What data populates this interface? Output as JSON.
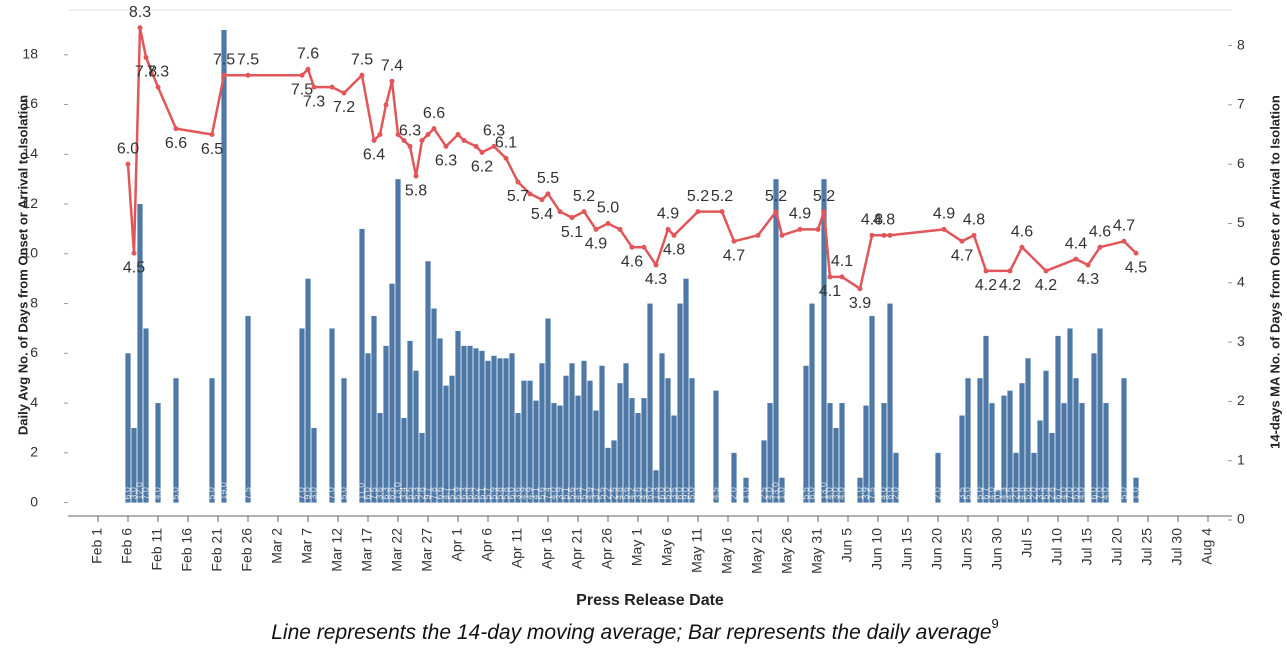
{
  "chart_data": {
    "type": "combo",
    "x_title": "Press Release Date",
    "y_title": "Daily Avg No. of Days from Onset or Arrival to Isolation",
    "y2_title": "14-days MA No. of Days from Onset or Arrival to Isolation",
    "caption": "Line represents the 14-day moving average; Bar represents the daily average",
    "caption_note": "9",
    "xlim": [
      "Jan 27",
      "Aug 8"
    ],
    "xticks": [
      "Feb 1",
      "Feb 6",
      "Feb 11",
      "Feb 16",
      "Feb 21",
      "Feb 26",
      "Mar 2",
      "Mar 7",
      "Mar 12",
      "Mar 17",
      "Mar 22",
      "Mar 27",
      "Apr 1",
      "Apr 6",
      "Apr 11",
      "Apr 16",
      "Apr 21",
      "Apr 26",
      "May 1",
      "May 6",
      "May 11",
      "May 16",
      "May 21",
      "May 26",
      "May 31",
      "Jun 5",
      "Jun 10",
      "Jun 15",
      "Jun 20",
      "Jun 25",
      "Jun 30",
      "Jul 5",
      "Jul 10",
      "Jul 15",
      "Jul 20",
      "Jul 25",
      "Jul 30",
      "Aug 4"
    ],
    "ylim": [
      -0.7,
      19.8
    ],
    "yticks": [
      0,
      2,
      4,
      6,
      8,
      10,
      12,
      14,
      16,
      18
    ],
    "y2lim": [
      0,
      8.6
    ],
    "y2ticks": [
      0,
      1,
      2,
      3,
      4,
      5,
      6,
      7,
      8
    ],
    "grid": false,
    "series": [
      {
        "type": "bar",
        "color": "#4e79a7",
        "x": [
          "Feb 6",
          "Feb 7",
          "Feb 8",
          "Feb 9",
          "Feb 11",
          "Feb 14",
          "Feb 20",
          "Feb 22",
          "Feb 26",
          "Mar 6",
          "Mar 7",
          "Mar 8",
          "Mar 11",
          "Mar 13",
          "Mar 16",
          "Mar 17",
          "Mar 18",
          "Mar 19",
          "Mar 20",
          "Mar 21",
          "Mar 22",
          "Mar 23",
          "Mar 24",
          "Mar 25",
          "Mar 26",
          "Mar 27",
          "Mar 28",
          "Mar 29",
          "Mar 30",
          "Mar 31",
          "Apr 1",
          "Apr 2",
          "Apr 3",
          "Apr 4",
          "Apr 5",
          "Apr 6",
          "Apr 7",
          "Apr 8",
          "Apr 9",
          "Apr 10",
          "Apr 11",
          "Apr 12",
          "Apr 13",
          "Apr 14",
          "Apr 15",
          "Apr 16",
          "Apr 17",
          "Apr 18",
          "Apr 19",
          "Apr 20",
          "Apr 21",
          "Apr 22",
          "Apr 23",
          "Apr 24",
          "Apr 25",
          "Apr 26",
          "Apr 27",
          "Apr 28",
          "Apr 29",
          "Apr 30",
          "May 1",
          "May 2",
          "May 3",
          "May 4",
          "May 5",
          "May 6",
          "May 7",
          "May 8",
          "May 9",
          "May 10",
          "May 14",
          "May 17",
          "May 19",
          "May 22",
          "May 23",
          "May 24",
          "May 25",
          "May 29",
          "May 30",
          "Jun 1",
          "Jun 2",
          "Jun 3",
          "Jun 4",
          "Jun 7",
          "Jun 8",
          "Jun 9",
          "Jun 11",
          "Jun 12",
          "Jun 13",
          "Jun 20",
          "Jun 24",
          "Jun 25",
          "Jun 27",
          "Jun 28",
          "Jun 29",
          "Jun 30",
          "Jul 1",
          "Jul 2",
          "Jul 3",
          "Jul 4",
          "Jul 5",
          "Jul 6",
          "Jul 7",
          "Jul 8",
          "Jul 9",
          "Jul 10",
          "Jul 11",
          "Jul 12",
          "Jul 13",
          "Jul 14",
          "Jul 16",
          "Jul 17",
          "Jul 18",
          "Jul 21",
          "Jul 23"
        ],
        "values": [
          6,
          3,
          12,
          7,
          4,
          5,
          5,
          19,
          7.5,
          7,
          9,
          3,
          7,
          5,
          11,
          6,
          7.5,
          3.6,
          6.3,
          8.8,
          13,
          3.4,
          6.5,
          5.3,
          2.8,
          9.7,
          7.8,
          6.6,
          4.7,
          5.1,
          6.9,
          6.3,
          6.3,
          6.2,
          6.1,
          5.7,
          5.9,
          5.8,
          5.8,
          6,
          3.6,
          4.9,
          4.9,
          4.1,
          5.6,
          7.4,
          4,
          3.9,
          5.1,
          5.6,
          4.3,
          5.7,
          4.9,
          3.7,
          5.5,
          2.2,
          2.5,
          4.8,
          5.6,
          4.2,
          3.6,
          4.2,
          8,
          1.3,
          6,
          5,
          3.5,
          8,
          9,
          5,
          4.5,
          2,
          1,
          2.5,
          4,
          13,
          1,
          5.5,
          8,
          13,
          4,
          3,
          4,
          1,
          3.9,
          7.5,
          4,
          8,
          2,
          2,
          3.5,
          5,
          5,
          6.7,
          4,
          0.5,
          4.3,
          4.5,
          2,
          4.8,
          5.8,
          2,
          3.3,
          5.3,
          2.8,
          6.7,
          4,
          7,
          5,
          4,
          6,
          7,
          4,
          5,
          1
        ],
        "value_labels": [
          "6.0",
          "3.0",
          "12.0",
          "7.0",
          "4.0",
          "5.0",
          "5.0",
          "19.0",
          "7.5",
          "7.0",
          "9.0",
          "3.0",
          "7.0",
          "5.0",
          "11.0",
          "6.0",
          "7.5",
          "3.6",
          "6.3",
          "8.8",
          "13.0",
          "3.4",
          "6.5",
          "5.3",
          "2.8",
          "9.7",
          "7.8",
          "6.6",
          "4.7",
          "5.1",
          "6.9",
          "6.3",
          "6.3",
          "6.2",
          "6.1",
          "5.7",
          "5.9",
          "5.8",
          "5.8",
          "6.0",
          "3.6",
          "4.9",
          "4.9",
          "4.1",
          "5.6",
          "7.4",
          "4.0",
          "3.9",
          "5.1",
          "5.6",
          "4.3",
          "5.7",
          "4.9",
          "3.7",
          "5.5",
          "2.2",
          "2.5",
          "4.8",
          "5.6",
          "4.2",
          "3.6",
          "4.2",
          "8.0",
          "1.3",
          "6.0",
          "5.0",
          "3.5",
          "8.0",
          "9.0",
          "5.0",
          "4.5",
          "2.0",
          "1.0",
          "2.5",
          "4.0",
          "13.0",
          "1.0",
          "5.5",
          "8.0",
          "13.0",
          "4.0",
          "3.0",
          "4.0",
          "1.0",
          "3.9",
          "7.5",
          "4.0",
          "8.0",
          "2.0",
          "2.0",
          "3.5",
          "5.0",
          "5.0",
          "6.7",
          "4.0",
          "0.5",
          "4.3",
          "4.5",
          "2.0",
          "4.8",
          "5.8",
          "2.0",
          "3.3",
          "5.3",
          "2.8",
          "6.7",
          "4.0",
          "7.0",
          "5.0",
          "4.0",
          "6.0",
          "7.0",
          "4.0",
          "5.0",
          "1.0"
        ]
      },
      {
        "type": "line",
        "axis": "y2",
        "color": "#e15759",
        "x": [
          "Feb 6",
          "Feb 7",
          "Feb 8",
          "Feb 9",
          "Feb 11",
          "Feb 14",
          "Feb 20",
          "Feb 22",
          "Feb 26",
          "Mar 6",
          "Mar 7",
          "Mar 8",
          "Mar 11",
          "Mar 13",
          "Mar 16",
          "Mar 18",
          "Mar 19",
          "Mar 20",
          "Mar 21",
          "Mar 22",
          "Mar 23",
          "Mar 24",
          "Mar 25",
          "Mar 26",
          "Mar 27",
          "Mar 28",
          "Mar 30",
          "Apr 1",
          "Apr 2",
          "Apr 4",
          "Apr 5",
          "Apr 7",
          "Apr 9",
          "Apr 11",
          "Apr 13",
          "Apr 15",
          "Apr 16",
          "Apr 18",
          "Apr 20",
          "Apr 22",
          "Apr 24",
          "Apr 26",
          "Apr 28",
          "Apr 30",
          "May 2",
          "May 4",
          "May 6",
          "May 7",
          "May 11",
          "May 15",
          "May 17",
          "May 21",
          "May 24",
          "May 25",
          "May 28",
          "May 31",
          "Jun 1",
          "Jun 2",
          "Jun 4",
          "Jun 7",
          "Jun 9",
          "Jun 11",
          "Jun 12",
          "Jun 21",
          "Jun 24",
          "Jun 26",
          "Jun 28",
          "Jul 2",
          "Jul 4",
          "Jul 8",
          "Jul 13",
          "Jul 15",
          "Jul 17",
          "Jul 21",
          "Jul 23"
        ],
        "values": [
          6.0,
          4.5,
          8.3,
          7.8,
          7.3,
          6.6,
          6.5,
          7.5,
          7.5,
          7.5,
          7.6,
          7.3,
          7.3,
          7.2,
          7.5,
          6.4,
          6.5,
          7.0,
          7.4,
          6.5,
          6.4,
          6.3,
          5.8,
          6.4,
          6.5,
          6.6,
          6.3,
          6.5,
          6.4,
          6.3,
          6.2,
          6.3,
          6.1,
          5.7,
          5.5,
          5.4,
          5.5,
          5.2,
          5.1,
          5.2,
          4.9,
          5.0,
          4.9,
          4.6,
          4.6,
          4.3,
          4.9,
          4.8,
          5.2,
          5.2,
          4.7,
          4.8,
          5.2,
          4.8,
          4.9,
          4.9,
          5.2,
          4.1,
          4.1,
          3.9,
          4.8,
          4.8,
          4.8,
          4.9,
          4.7,
          4.8,
          4.2,
          4.2,
          4.6,
          4.2,
          4.4,
          4.3,
          4.6,
          4.7,
          4.5
        ],
        "value_labels": [
          "6.0",
          "4.5",
          "8.3",
          "7.8",
          "7.3",
          "6.6",
          "6.5",
          "7.5",
          "7.5",
          "7.5",
          "7.6",
          "7.3",
          null,
          "7.2",
          "7.5",
          "6.4",
          null,
          null,
          "7.4",
          null,
          null,
          "6.3",
          "5.8",
          null,
          null,
          "6.6",
          "6.3",
          null,
          null,
          null,
          "6.2",
          "6.3",
          "6.1",
          "5.7",
          null,
          "5.4",
          "5.5",
          null,
          "5.1",
          "5.2",
          "4.9",
          "5.0",
          null,
          "4.6",
          null,
          "4.3",
          "4.9",
          "4.8",
          "5.2",
          "5.2",
          "4.7",
          null,
          "5.2",
          null,
          "4.9",
          null,
          "5.2",
          "4.1",
          "4.1",
          "3.9",
          "4.8",
          "4.8",
          null,
          "4.9",
          "4.7",
          "4.8",
          "4.2",
          "4.2",
          "4.6",
          "4.2",
          "4.4",
          "4.3",
          "4.6",
          "4.7",
          "4.5"
        ]
      }
    ]
  }
}
